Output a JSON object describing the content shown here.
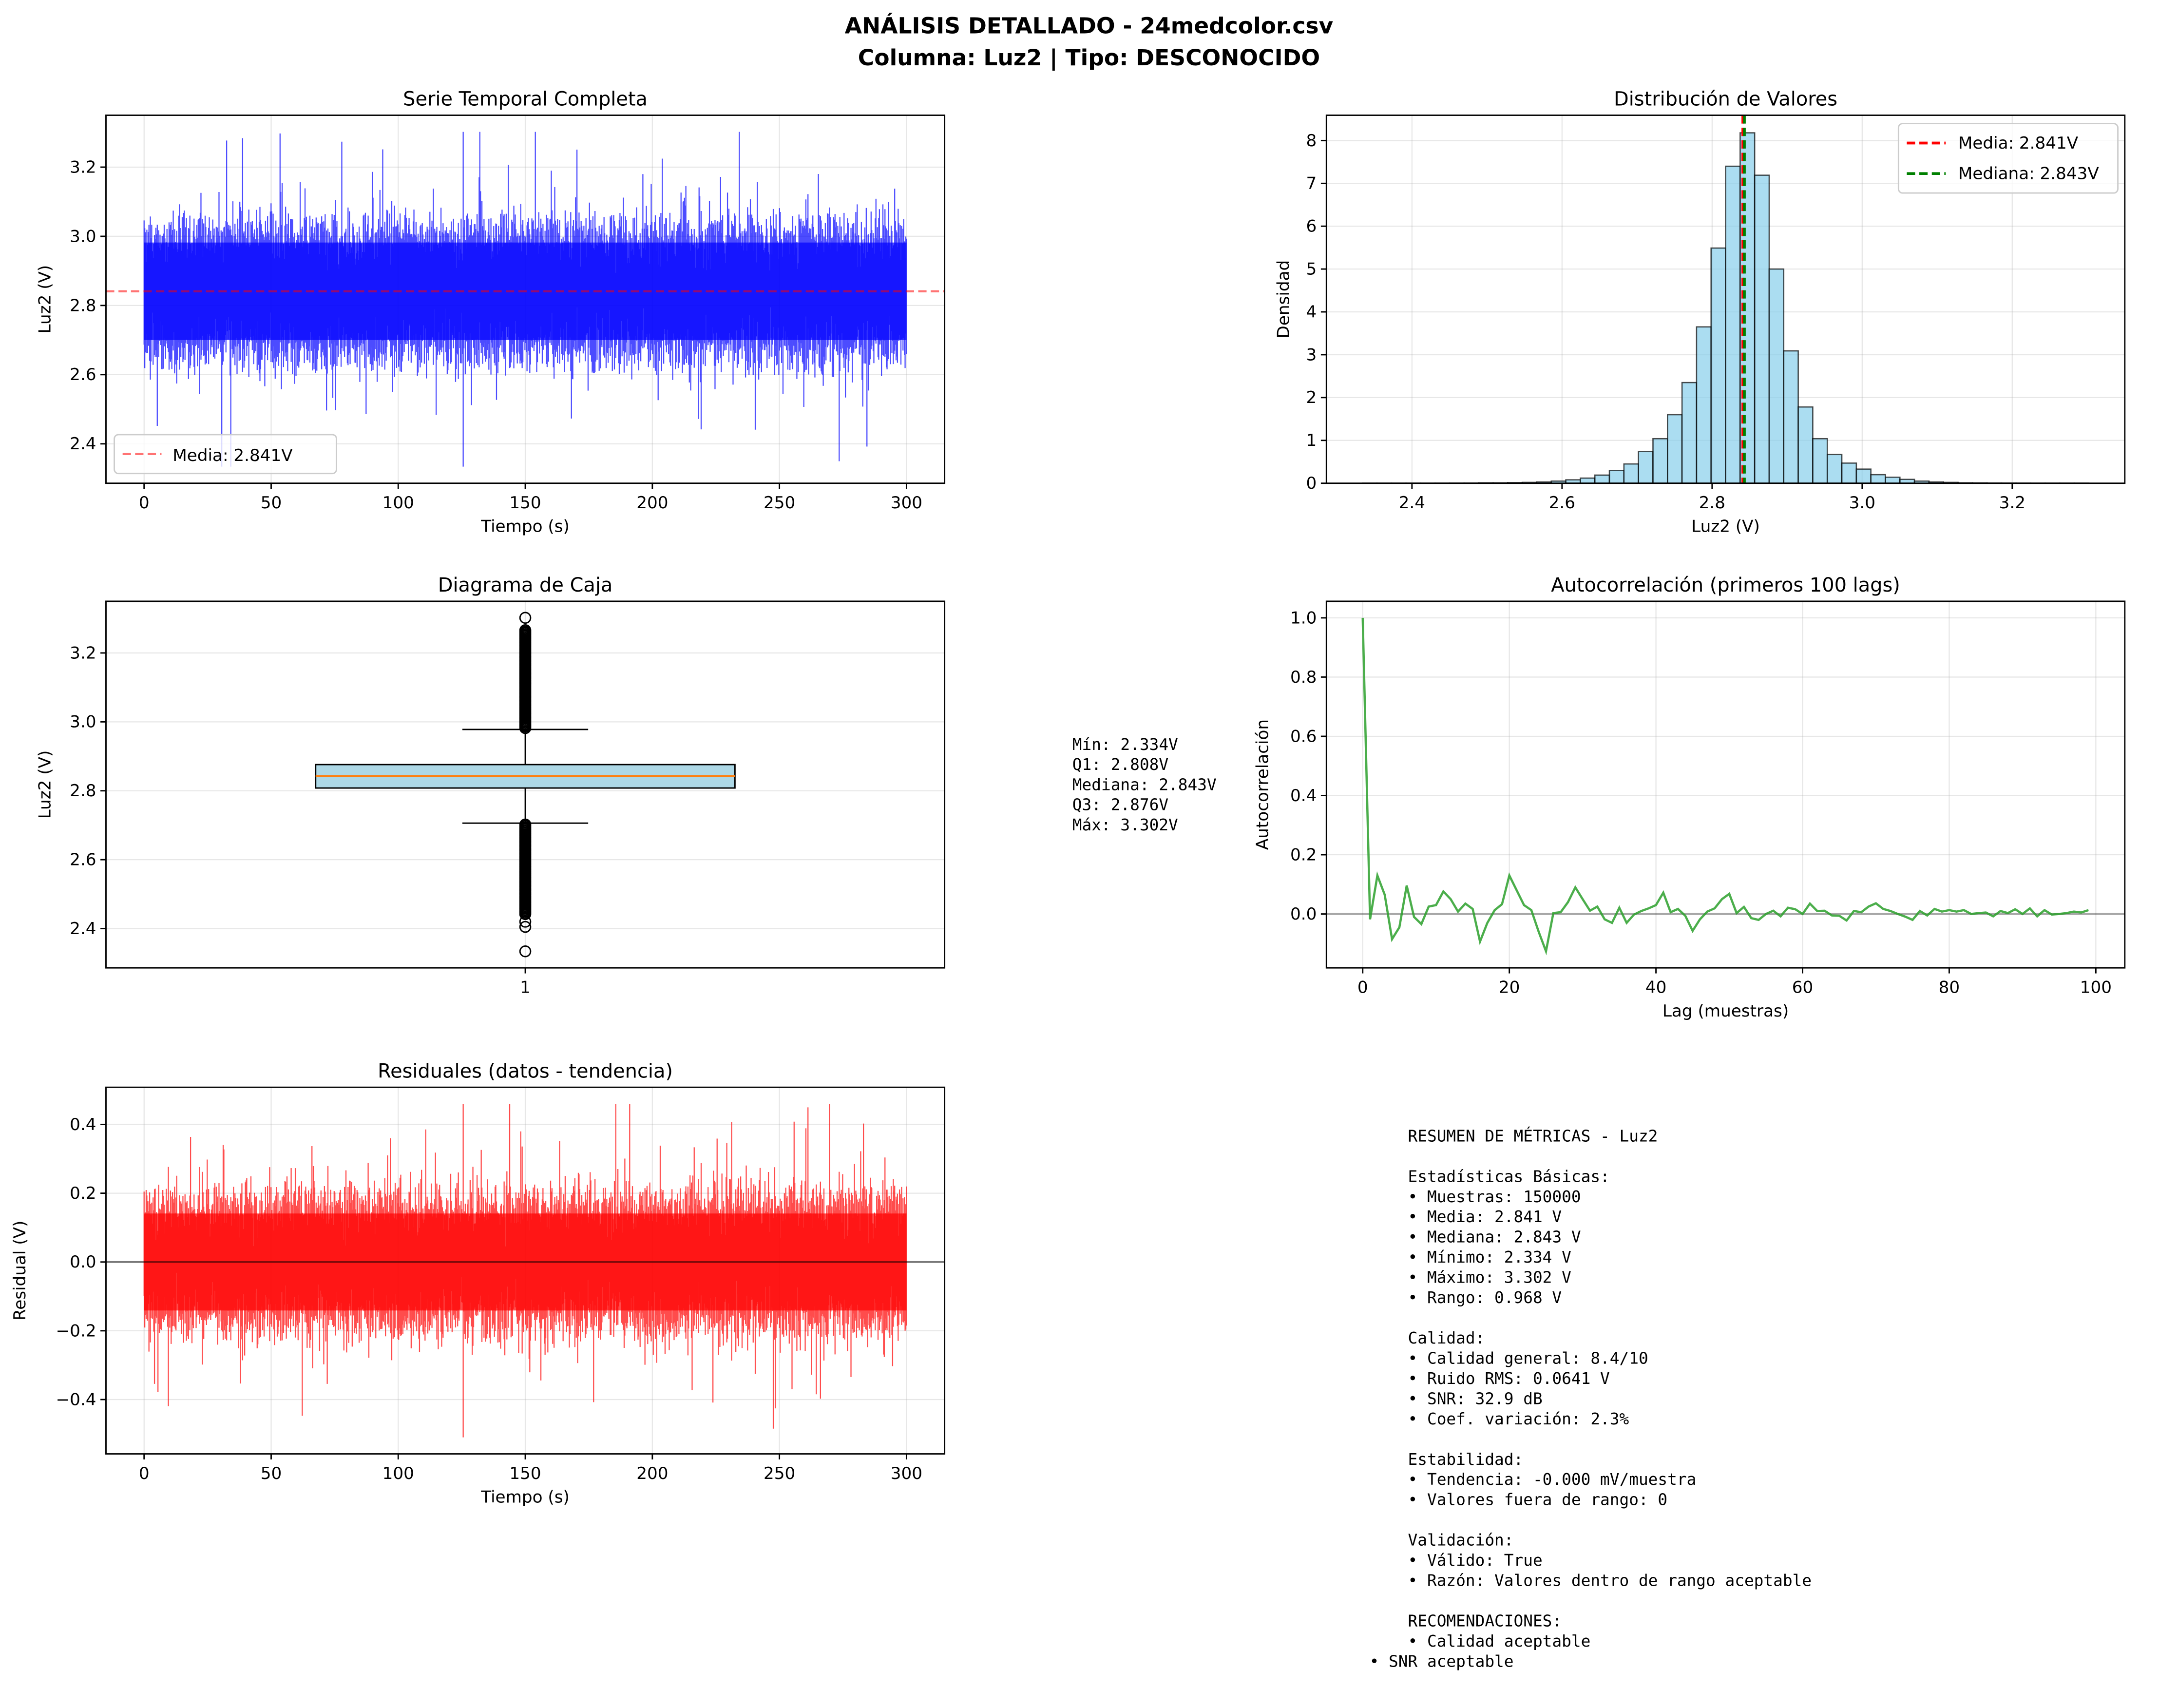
{
  "title": {
    "line1": "ANÁLISIS DETALLADO - 24medcolor.csv",
    "line2": "Columna: Luz2 | Tipo: DESCONOCIDO"
  },
  "colors": {
    "series": "#0000ff",
    "mean": "#ff0000",
    "median": "#008000",
    "hist": "#87ceeb",
    "acf": "#2ca02c",
    "residual": "#ff0000",
    "box": "#add8e6"
  },
  "chart_data": [
    {
      "type": "line",
      "title": "Serie Temporal Completa",
      "xlabel": "Tiempo (s)",
      "ylabel": "Luz2 (V)",
      "xlim": [
        -15,
        315
      ],
      "ylim": [
        2.286,
        3.35
      ],
      "xticks": [
        0,
        50,
        100,
        150,
        200,
        250,
        300
      ],
      "yticks": [
        2.4,
        2.6,
        2.8,
        3.0,
        3.2
      ],
      "samples": 150000,
      "x_range": [
        0,
        300
      ],
      "mean": 2.841,
      "min": 2.334,
      "max": 3.302,
      "noise_rms": 0.0641,
      "hline": {
        "value": 2.841,
        "label": "Media: 2.841V"
      },
      "legend": "lower-left",
      "grid": true
    },
    {
      "type": "bar",
      "title": "Distribución de Valores",
      "xlabel": "Luz2 (V)",
      "ylabel": "Densidad",
      "xlim": [
        2.286,
        3.35
      ],
      "ylim": [
        0,
        8.59
      ],
      "xticks": [
        2.4,
        2.6,
        2.8,
        3.0,
        3.2
      ],
      "yticks": [
        0,
        1,
        2,
        3,
        4,
        5,
        6,
        7,
        8
      ],
      "bin_start": 2.334,
      "bin_end": 3.302,
      "values": [
        0.002,
        0.002,
        0.002,
        0.002,
        0.002,
        0.003,
        0.004,
        0.005,
        0.01,
        0.01,
        0.015,
        0.02,
        0.03,
        0.05,
        0.08,
        0.12,
        0.19,
        0.3,
        0.45,
        0.74,
        1.04,
        1.6,
        2.35,
        3.65,
        5.49,
        7.4,
        8.18,
        7.19,
        5.0,
        3.09,
        1.78,
        1.04,
        0.67,
        0.47,
        0.33,
        0.2,
        0.14,
        0.09,
        0.05,
        0.03,
        0.02,
        0.01,
        0.008,
        0.005,
        0.004,
        0.003,
        0.002,
        0.002,
        0.002,
        0.002
      ],
      "vlines": [
        {
          "value": 2.841,
          "label": "Media: 2.841V"
        },
        {
          "value": 2.843,
          "label": "Mediana: 2.843V"
        }
      ],
      "legend": "upper-right",
      "grid": true
    },
    {
      "type": "box",
      "title": "Diagrama de Caja",
      "ylabel": "Luz2 (V)",
      "xlim": [
        0.5,
        1.5
      ],
      "ylim": [
        2.286,
        3.35
      ],
      "xticks": [
        "1"
      ],
      "yticks": [
        2.4,
        2.6,
        2.8,
        3.0,
        3.2
      ],
      "min": 2.334,
      "q1": 2.808,
      "median": 2.843,
      "q3": 2.876,
      "max": 3.302,
      "whisker_low": 2.706,
      "whisker_high": 2.978,
      "grid": true
    },
    {
      "type": "line",
      "title": "Autocorrelación (primeros 100 lags)",
      "xlabel": "Lag (muestras)",
      "ylabel": "Autocorrelación",
      "xlim": [
        -4.95,
        103.95
      ],
      "ylim": [
        -0.182,
        1.056
      ],
      "xticks": [
        0,
        20,
        40,
        60,
        80,
        100
      ],
      "yticks": [
        0.0,
        0.2,
        0.4,
        0.6,
        0.8,
        1.0
      ],
      "values": [
        1.0,
        -0.018,
        0.13,
        0.065,
        -0.085,
        -0.045,
        0.096,
        -0.01,
        -0.034,
        0.025,
        0.03,
        0.076,
        0.05,
        0.008,
        0.035,
        0.017,
        -0.093,
        -0.03,
        0.013,
        0.033,
        0.13,
        0.08,
        0.03,
        0.013,
        -0.06,
        -0.126,
        0.003,
        0.006,
        0.04,
        0.09,
        0.05,
        0.011,
        0.025,
        -0.018,
        -0.03,
        0.021,
        -0.03,
        -0.002,
        0.01,
        0.019,
        0.03,
        0.072,
        0.006,
        0.017,
        -0.006,
        -0.057,
        -0.018,
        0.008,
        0.019,
        0.05,
        0.068,
        0.003,
        0.024,
        -0.014,
        -0.02,
        0,
        0.011,
        -0.008,
        0.021,
        0.016,
        0,
        0.035,
        0.01,
        0.011,
        -0.005,
        -0.006,
        -0.022,
        0.01,
        0.006,
        0.025,
        0.036,
        0.017,
        0.01,
        0,
        -0.009,
        -0.02,
        0.01,
        -0.005,
        0.017,
        0.008,
        0.013,
        0.008,
        0.013,
        0,
        0.003,
        0.005,
        -0.008,
        0.01,
        0.003,
        0.016,
        0,
        0.019,
        -0.008,
        0.013,
        -0.002,
        0,
        0.003,
        0.008,
        0.005,
        0.013
      ],
      "hline": 0,
      "grid": true
    },
    {
      "type": "line",
      "title": "Residuales (datos - tendencia)",
      "xlabel": "Tiempo (s)",
      "ylabel": "Residual (V)",
      "xlim": [
        -15,
        315
      ],
      "ylim": [
        -0.558,
        0.508
      ],
      "xticks": [
        0,
        50,
        100,
        150,
        200,
        250,
        300
      ],
      "yticks": [
        -0.4,
        -0.2,
        0.0,
        0.2,
        0.4
      ],
      "x_range": [
        0,
        300
      ],
      "min": -0.51,
      "max": 0.46,
      "noise_rms": 0.0641,
      "hline": 0,
      "grid": true
    }
  ],
  "box_stats": [
    "Mín: 2.334V",
    "Q1: 2.808V",
    "Mediana: 2.843V",
    "Q3: 2.876V",
    "Máx: 3.302V"
  ],
  "summary": [
    "    RESUMEN DE MÉTRICAS - Luz2",
    "",
    "    Estadísticas Básicas:",
    "    • Muestras: 150000",
    "    • Media: 2.841 V",
    "    • Mediana: 2.843 V",
    "    • Mínimo: 2.334 V",
    "    • Máximo: 3.302 V",
    "    • Rango: 0.968 V",
    "",
    "    Calidad:",
    "    • Calidad general: 8.4/10",
    "    • Ruido RMS: 0.0641 V",
    "    • SNR: 32.9 dB",
    "    • Coef. variación: 2.3%",
    "",
    "    Estabilidad:",
    "    • Tendencia: -0.000 mV/muestra",
    "    • Valores fuera de rango: 0",
    "",
    "    Validación:",
    "    • Válido: True",
    "    • Razón: Valores dentro de rango aceptable",
    "",
    "    RECOMENDACIONES:",
    "    • Calidad aceptable",
    "• SNR aceptable"
  ]
}
